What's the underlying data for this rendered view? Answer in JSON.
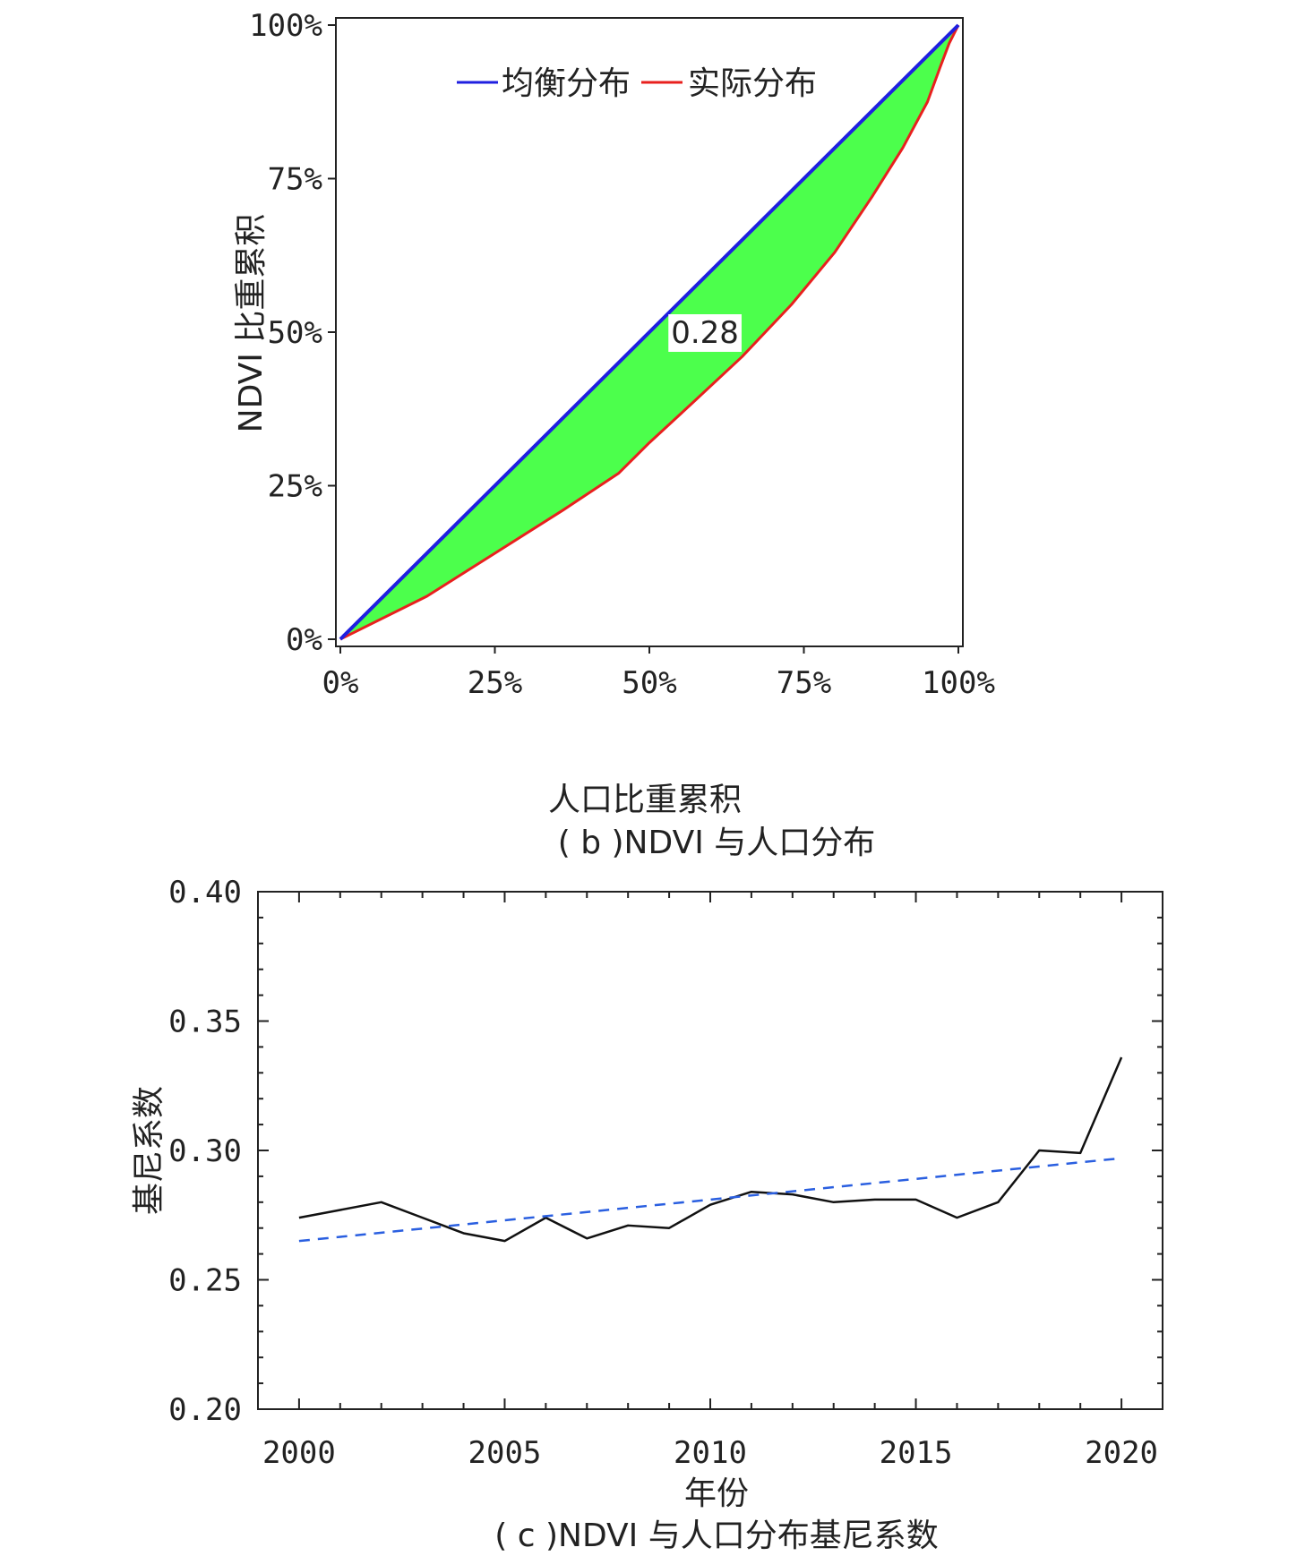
{
  "chart_data": [
    {
      "id": "b",
      "type": "area",
      "caption": "( b )NDVI 与人口分布",
      "xlabel": "人口比重累积",
      "ylabel": "NDVI 比重累积",
      "xlim": [
        0,
        100
      ],
      "ylim": [
        0,
        100
      ],
      "xticks": [
        "0%",
        "25%",
        "50%",
        "75%",
        "100%"
      ],
      "yticks": [
        "0%",
        "25%",
        "50%",
        "75%",
        "100%"
      ],
      "annotation": "0.28",
      "legend": {
        "position": "top-left",
        "entries": [
          "均衡分布",
          "实际分布"
        ]
      },
      "fill_color": "#4cff4c",
      "series": [
        {
          "name": "均衡分布",
          "color": "#1f1fe0",
          "x": [
            0,
            100
          ],
          "y": [
            0,
            100
          ]
        },
        {
          "name": "实际分布",
          "color": "#e8201e",
          "x": [
            0,
            14,
            25,
            36,
            45,
            50,
            57,
            65,
            73,
            80,
            86,
            91,
            95,
            97,
            98.5,
            100
          ],
          "y": [
            0,
            7,
            14,
            21,
            27,
            32,
            38.5,
            46,
            54.5,
            63,
            72,
            80,
            87.5,
            93,
            97,
            100
          ]
        }
      ]
    },
    {
      "id": "c",
      "type": "line",
      "caption": "( c )NDVI 与人口分布基尼系数",
      "xlabel": "年份",
      "ylabel": "基尼系数",
      "xlim": [
        1999,
        2021
      ],
      "ylim": [
        0.2,
        0.4
      ],
      "xticks": [
        "2000",
        "2005",
        "2010",
        "2015",
        "2020"
      ],
      "yticks": [
        "0.20",
        "0.25",
        "0.30",
        "0.35",
        "0.40"
      ],
      "series": [
        {
          "name": "",
          "color": "#111111",
          "style": "solid",
          "x": [
            2000,
            2001,
            2002,
            2003,
            2004,
            2005,
            2006,
            2007,
            2008,
            2009,
            2010,
            2011,
            2012,
            2013,
            2014,
            2015,
            2016,
            2017,
            2018,
            2019,
            2020
          ],
          "y": [
            0.274,
            0.277,
            0.28,
            0.274,
            0.268,
            0.265,
            0.274,
            0.266,
            0.271,
            0.27,
            0.279,
            0.284,
            0.283,
            0.28,
            0.281,
            0.281,
            0.274,
            0.28,
            0.3,
            0.299,
            0.336
          ]
        },
        {
          "name": "",
          "color": "#2a5fe0",
          "style": "dashed",
          "x": [
            2000,
            2020
          ],
          "y": [
            0.265,
            0.297
          ]
        }
      ]
    }
  ]
}
